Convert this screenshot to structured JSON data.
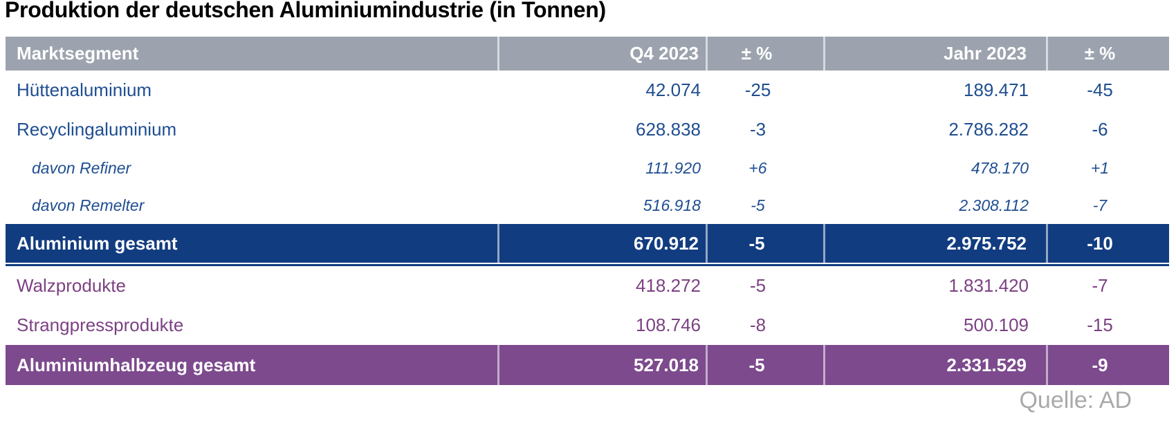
{
  "title": "Produktion der deutschen Aluminiumindustrie (in Tonnen)",
  "source": "Quelle: AD",
  "colors": {
    "title_text": "#000000",
    "header_bg": "#9CA3AE",
    "header_text": "#FFFFFF",
    "blue_text": "#1F4E91",
    "blue_total_bg": "#123C80",
    "purple_text": "#7C4183",
    "purple_total_bg": "#7D4A8E",
    "source_text": "#A9A9A9"
  },
  "chart_data": {
    "type": "table",
    "title": "Produktion der deutschen Aluminiumindustrie (in Tonnen)",
    "columns": [
      "Marktsegment",
      "Q4 2023",
      "± %",
      "Jahr 2023",
      "± %"
    ],
    "rows": [
      {
        "style": "blue",
        "cells": [
          "Hüttenaluminium",
          "42.074",
          "-25",
          "189.471",
          "-45"
        ]
      },
      {
        "style": "blue",
        "cells": [
          "Recyclingaluminium",
          "628.838",
          "-3",
          "2.786.282",
          "-6"
        ]
      },
      {
        "style": "blue-sub",
        "cells": [
          "davon Refiner",
          "111.920",
          "+6",
          "478.170",
          "+1"
        ]
      },
      {
        "style": "blue-sub",
        "cells": [
          "davon Remelter",
          "516.918",
          "-5",
          "2.308.112",
          "-7"
        ]
      },
      {
        "style": "blue-total",
        "cells": [
          "Aluminium gesamt",
          "670.912",
          "-5",
          "2.975.752",
          "-10"
        ]
      },
      {
        "style": "purple",
        "cells": [
          "Walzprodukte",
          "418.272",
          "-5",
          "1.831.420",
          "-7"
        ]
      },
      {
        "style": "purple",
        "cells": [
          "Strangpressprodukte",
          "108.746",
          "-8",
          "500.109",
          "-15"
        ]
      },
      {
        "style": "purple-total",
        "cells": [
          "Aluminiumhalbzeug gesamt",
          "527.018",
          "-5",
          "2.331.529",
          "-9"
        ]
      }
    ],
    "source": "Quelle: AD"
  }
}
